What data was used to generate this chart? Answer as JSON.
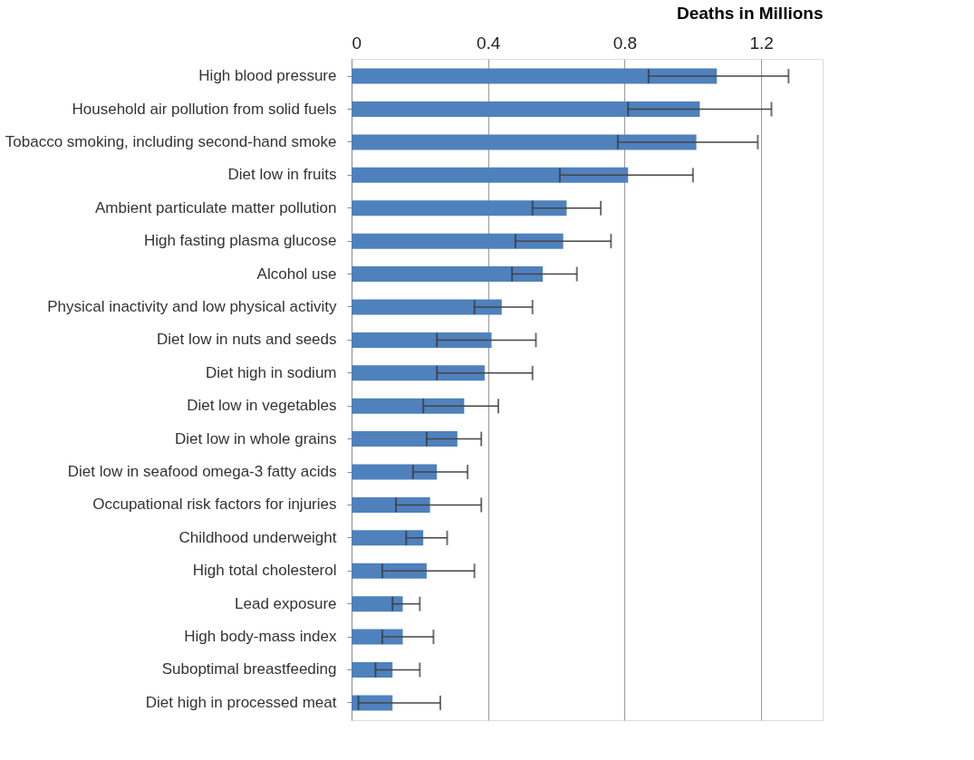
{
  "chart_data": {
    "type": "bar",
    "orientation": "horizontal",
    "xlabel": "Deaths in Millions",
    "categories": [
      "High blood pressure",
      "Household air pollution from solid fuels",
      "Tobacco smoking, including second-hand smoke",
      "Diet low in fruits",
      "Ambient particulate matter pollution",
      "High fasting plasma glucose",
      "Alcohol use",
      "Physical inactivity and low physical activity",
      "Diet low in nuts and seeds",
      "Diet high in sodium",
      "Diet low in vegetables",
      "Diet low in whole grains",
      "Diet low in seafood omega-3 fatty acids",
      "Occupational risk factors for injuries",
      "Childhood underweight",
      "High total cholesterol",
      "Lead exposure",
      "High body-mass index",
      "Suboptimal breastfeeding",
      "Diet high in processed meat"
    ],
    "series": [
      {
        "color": "#4f81bd",
        "values": [
          1.07,
          1.02,
          1.01,
          0.81,
          0.63,
          0.62,
          0.56,
          0.44,
          0.41,
          0.39,
          0.33,
          0.31,
          0.25,
          0.23,
          0.21,
          0.22,
          0.15,
          0.15,
          0.12,
          0.12
        ],
        "errors": [
          [
            0.87,
            1.28
          ],
          [
            0.81,
            1.23
          ],
          [
            0.78,
            1.19
          ],
          [
            0.61,
            1.0
          ],
          [
            0.53,
            0.73
          ],
          [
            0.48,
            0.76
          ],
          [
            0.47,
            0.66
          ],
          [
            0.36,
            0.53
          ],
          [
            0.25,
            0.54
          ],
          [
            0.25,
            0.53
          ],
          [
            0.21,
            0.43
          ],
          [
            0.22,
            0.38
          ],
          [
            0.18,
            0.34
          ],
          [
            0.13,
            0.38
          ],
          [
            0.16,
            0.28
          ],
          [
            0.09,
            0.36
          ],
          [
            0.12,
            0.2
          ],
          [
            0.09,
            0.24
          ],
          [
            0.07,
            0.2
          ],
          [
            0.02,
            0.26
          ]
        ]
      }
    ],
    "xlim": [
      0,
      1.38
    ],
    "xticks": [
      0,
      0.4,
      0.8,
      1.2
    ],
    "grid": "x"
  }
}
